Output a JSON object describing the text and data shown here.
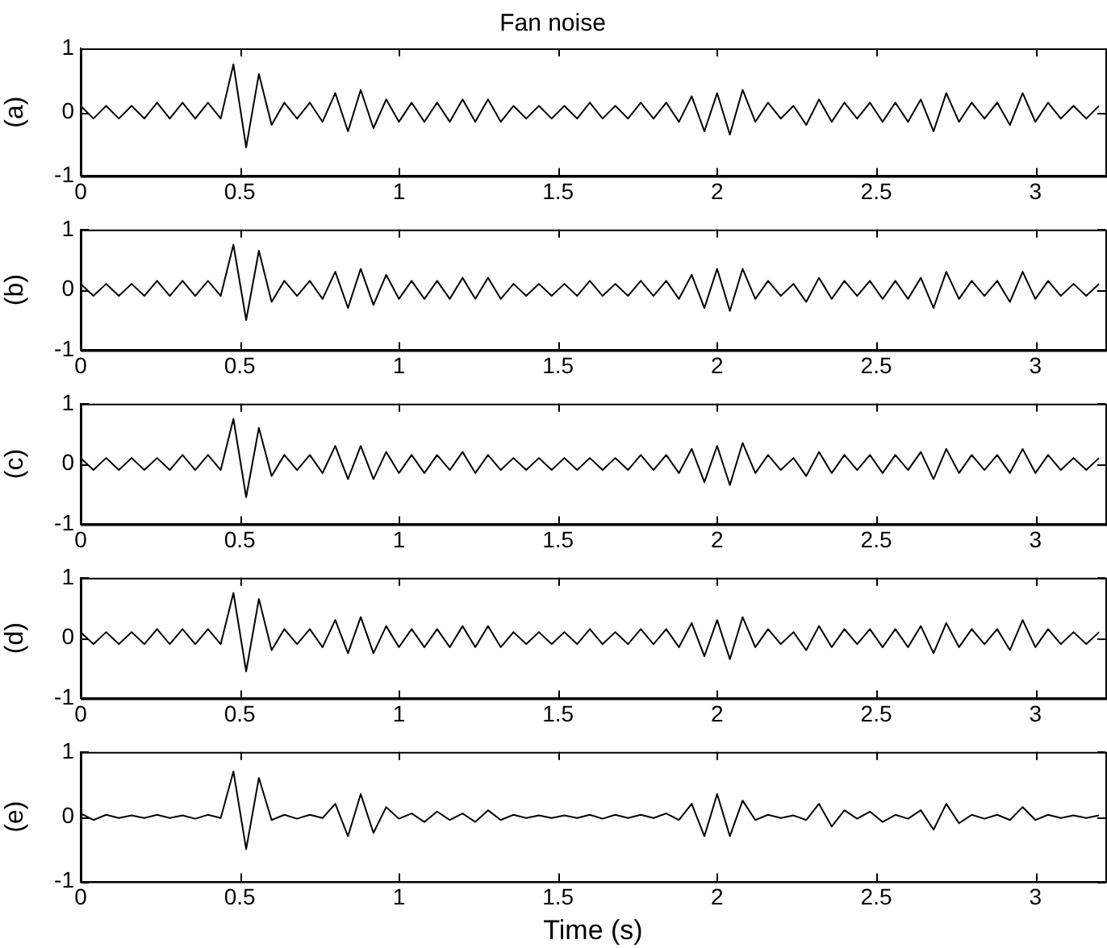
{
  "chart_data": [
    {
      "type": "line",
      "title": "Fan noise",
      "ylabel": "(a)",
      "color": "#000000",
      "xlim": [
        0,
        3.22
      ],
      "xticks": [
        0,
        0.5,
        1,
        1.5,
        2,
        2.5,
        3
      ],
      "ylim": [
        -1,
        1
      ],
      "yticks": [
        -1,
        0,
        1
      ],
      "grid": false,
      "legend": false,
      "marker": "none",
      "x": [
        0,
        0.04,
        0.08,
        0.12,
        0.16,
        0.2,
        0.24,
        0.28,
        0.32,
        0.36,
        0.4,
        0.44,
        0.48,
        0.52,
        0.56,
        0.6,
        0.64,
        0.68,
        0.72,
        0.76,
        0.8,
        0.84,
        0.88,
        0.92,
        0.96,
        1,
        1.04,
        1.08,
        1.12,
        1.16,
        1.2,
        1.24,
        1.28,
        1.32,
        1.36,
        1.4,
        1.44,
        1.48,
        1.52,
        1.56,
        1.6,
        1.64,
        1.68,
        1.72,
        1.76,
        1.8,
        1.84,
        1.88,
        1.92,
        1.96,
        2,
        2.04,
        2.08,
        2.12,
        2.16,
        2.2,
        2.24,
        2.28,
        2.32,
        2.36,
        2.4,
        2.44,
        2.48,
        2.52,
        2.56,
        2.6,
        2.64,
        2.68,
        2.72,
        2.76,
        2.8,
        2.84,
        2.88,
        2.92,
        2.96,
        3,
        3.04,
        3.08,
        3.12,
        3.16,
        3.2
      ],
      "values": [
        0.1,
        -0.1,
        0.1,
        -0.1,
        0.1,
        -0.1,
        0.15,
        -0.1,
        0.15,
        -0.1,
        0.15,
        -0.1,
        0.75,
        -0.55,
        0.6,
        -0.2,
        0.15,
        -0.1,
        0.15,
        -0.15,
        0.3,
        -0.3,
        0.35,
        -0.25,
        0.2,
        -0.15,
        0.15,
        -0.15,
        0.15,
        -0.15,
        0.2,
        -0.15,
        0.2,
        -0.15,
        0.1,
        -0.1,
        0.1,
        -0.1,
        0.1,
        -0.1,
        0.15,
        -0.1,
        0.1,
        -0.1,
        0.15,
        -0.1,
        0.15,
        -0.15,
        0.25,
        -0.3,
        0.3,
        -0.35,
        0.35,
        -0.15,
        0.15,
        -0.1,
        0.1,
        -0.2,
        0.2,
        -0.15,
        0.15,
        -0.1,
        0.15,
        -0.15,
        0.15,
        -0.15,
        0.2,
        -0.3,
        0.3,
        -0.15,
        0.15,
        -0.1,
        0.15,
        -0.2,
        0.3,
        -0.15,
        0.15,
        -0.1,
        0.1,
        -0.1,
        0.1
      ]
    },
    {
      "type": "line",
      "ylabel": "(b)",
      "color": "#000000",
      "xlim": [
        0,
        3.22
      ],
      "xticks": [
        0,
        0.5,
        1,
        1.5,
        2,
        2.5,
        3
      ],
      "ylim": [
        -1,
        1
      ],
      "yticks": [
        -1,
        0,
        1
      ],
      "grid": false,
      "legend": false,
      "marker": "none",
      "x": [
        0,
        0.04,
        0.08,
        0.12,
        0.16,
        0.2,
        0.24,
        0.28,
        0.32,
        0.36,
        0.4,
        0.44,
        0.48,
        0.52,
        0.56,
        0.6,
        0.64,
        0.68,
        0.72,
        0.76,
        0.8,
        0.84,
        0.88,
        0.92,
        0.96,
        1,
        1.04,
        1.08,
        1.12,
        1.16,
        1.2,
        1.24,
        1.28,
        1.32,
        1.36,
        1.4,
        1.44,
        1.48,
        1.52,
        1.56,
        1.6,
        1.64,
        1.68,
        1.72,
        1.76,
        1.8,
        1.84,
        1.88,
        1.92,
        1.96,
        2,
        2.04,
        2.08,
        2.12,
        2.16,
        2.2,
        2.24,
        2.28,
        2.32,
        2.36,
        2.4,
        2.44,
        2.48,
        2.52,
        2.56,
        2.6,
        2.64,
        2.68,
        2.72,
        2.76,
        2.8,
        2.84,
        2.88,
        2.92,
        2.96,
        3,
        3.04,
        3.08,
        3.12,
        3.16,
        3.2
      ],
      "values": [
        0.1,
        -0.1,
        0.1,
        -0.1,
        0.1,
        -0.1,
        0.15,
        -0.1,
        0.15,
        -0.1,
        0.15,
        -0.1,
        0.75,
        -0.5,
        0.65,
        -0.2,
        0.15,
        -0.1,
        0.15,
        -0.15,
        0.3,
        -0.3,
        0.35,
        -0.25,
        0.25,
        -0.15,
        0.15,
        -0.15,
        0.15,
        -0.15,
        0.2,
        -0.15,
        0.2,
        -0.15,
        0.1,
        -0.1,
        0.1,
        -0.1,
        0.1,
        -0.1,
        0.15,
        -0.1,
        0.1,
        -0.1,
        0.15,
        -0.1,
        0.15,
        -0.15,
        0.25,
        -0.3,
        0.35,
        -0.35,
        0.35,
        -0.15,
        0.15,
        -0.1,
        0.1,
        -0.2,
        0.2,
        -0.15,
        0.15,
        -0.1,
        0.15,
        -0.15,
        0.15,
        -0.15,
        0.2,
        -0.3,
        0.3,
        -0.15,
        0.15,
        -0.1,
        0.15,
        -0.2,
        0.3,
        -0.15,
        0.15,
        -0.1,
        0.1,
        -0.1,
        0.1
      ]
    },
    {
      "type": "line",
      "ylabel": "(c)",
      "color": "#000000",
      "xlim": [
        0,
        3.22
      ],
      "xticks": [
        0,
        0.5,
        1,
        1.5,
        2,
        2.5,
        3
      ],
      "ylim": [
        -1,
        1
      ],
      "yticks": [
        -1,
        0,
        1
      ],
      "grid": false,
      "legend": false,
      "marker": "none",
      "x": [
        0,
        0.04,
        0.08,
        0.12,
        0.16,
        0.2,
        0.24,
        0.28,
        0.32,
        0.36,
        0.4,
        0.44,
        0.48,
        0.52,
        0.56,
        0.6,
        0.64,
        0.68,
        0.72,
        0.76,
        0.8,
        0.84,
        0.88,
        0.92,
        0.96,
        1,
        1.04,
        1.08,
        1.12,
        1.16,
        1.2,
        1.24,
        1.28,
        1.32,
        1.36,
        1.4,
        1.44,
        1.48,
        1.52,
        1.56,
        1.6,
        1.64,
        1.68,
        1.72,
        1.76,
        1.8,
        1.84,
        1.88,
        1.92,
        1.96,
        2,
        2.04,
        2.08,
        2.12,
        2.16,
        2.2,
        2.24,
        2.28,
        2.32,
        2.36,
        2.4,
        2.44,
        2.48,
        2.52,
        2.56,
        2.6,
        2.64,
        2.68,
        2.72,
        2.76,
        2.8,
        2.84,
        2.88,
        2.92,
        2.96,
        3,
        3.04,
        3.08,
        3.12,
        3.16,
        3.2
      ],
      "values": [
        0.1,
        -0.1,
        0.1,
        -0.1,
        0.1,
        -0.1,
        0.1,
        -0.1,
        0.15,
        -0.1,
        0.15,
        -0.1,
        0.75,
        -0.55,
        0.6,
        -0.2,
        0.15,
        -0.1,
        0.15,
        -0.15,
        0.3,
        -0.25,
        0.3,
        -0.25,
        0.2,
        -0.15,
        0.15,
        -0.15,
        0.15,
        -0.1,
        0.2,
        -0.15,
        0.15,
        -0.1,
        0.1,
        -0.1,
        0.1,
        -0.1,
        0.1,
        -0.1,
        0.1,
        -0.1,
        0.1,
        -0.1,
        0.15,
        -0.1,
        0.15,
        -0.15,
        0.25,
        -0.3,
        0.3,
        -0.35,
        0.35,
        -0.15,
        0.15,
        -0.1,
        0.1,
        -0.2,
        0.2,
        -0.15,
        0.15,
        -0.1,
        0.15,
        -0.15,
        0.15,
        -0.1,
        0.2,
        -0.25,
        0.25,
        -0.15,
        0.15,
        -0.1,
        0.15,
        -0.15,
        0.25,
        -0.15,
        0.15,
        -0.1,
        0.1,
        -0.1,
        0.1
      ]
    },
    {
      "type": "line",
      "ylabel": "(d)",
      "color": "#000000",
      "xlim": [
        0,
        3.22
      ],
      "xticks": [
        0,
        0.5,
        1,
        1.5,
        2,
        2.5,
        3
      ],
      "ylim": [
        -1,
        1
      ],
      "yticks": [
        -1,
        0,
        1
      ],
      "grid": false,
      "legend": false,
      "marker": "none",
      "x": [
        0,
        0.04,
        0.08,
        0.12,
        0.16,
        0.2,
        0.24,
        0.28,
        0.32,
        0.36,
        0.4,
        0.44,
        0.48,
        0.52,
        0.56,
        0.6,
        0.64,
        0.68,
        0.72,
        0.76,
        0.8,
        0.84,
        0.88,
        0.92,
        0.96,
        1,
        1.04,
        1.08,
        1.12,
        1.16,
        1.2,
        1.24,
        1.28,
        1.32,
        1.36,
        1.4,
        1.44,
        1.48,
        1.52,
        1.56,
        1.6,
        1.64,
        1.68,
        1.72,
        1.76,
        1.8,
        1.84,
        1.88,
        1.92,
        1.96,
        2,
        2.04,
        2.08,
        2.12,
        2.16,
        2.2,
        2.24,
        2.28,
        2.32,
        2.36,
        2.4,
        2.44,
        2.48,
        2.52,
        2.56,
        2.6,
        2.64,
        2.68,
        2.72,
        2.76,
        2.8,
        2.84,
        2.88,
        2.92,
        2.96,
        3,
        3.04,
        3.08,
        3.12,
        3.16,
        3.2
      ],
      "values": [
        0.1,
        -0.1,
        0.1,
        -0.1,
        0.1,
        -0.1,
        0.15,
        -0.1,
        0.15,
        -0.1,
        0.15,
        -0.1,
        0.75,
        -0.55,
        0.65,
        -0.2,
        0.15,
        -0.1,
        0.15,
        -0.15,
        0.3,
        -0.25,
        0.35,
        -0.25,
        0.2,
        -0.15,
        0.15,
        -0.15,
        0.15,
        -0.15,
        0.2,
        -0.15,
        0.2,
        -0.15,
        0.1,
        -0.1,
        0.1,
        -0.1,
        0.1,
        -0.1,
        0.15,
        -0.1,
        0.1,
        -0.1,
        0.15,
        -0.1,
        0.15,
        -0.15,
        0.25,
        -0.3,
        0.3,
        -0.35,
        0.35,
        -0.15,
        0.15,
        -0.1,
        0.1,
        -0.2,
        0.2,
        -0.15,
        0.15,
        -0.1,
        0.15,
        -0.15,
        0.15,
        -0.15,
        0.2,
        -0.25,
        0.25,
        -0.15,
        0.15,
        -0.1,
        0.15,
        -0.2,
        0.3,
        -0.15,
        0.15,
        -0.1,
        0.1,
        -0.1,
        0.1
      ]
    },
    {
      "type": "line",
      "ylabel": "(e)",
      "xlabel": "Time (s)",
      "color": "#000000",
      "xlim": [
        0,
        3.22
      ],
      "xticks": [
        0,
        0.5,
        1,
        1.5,
        2,
        2.5,
        3
      ],
      "ylim": [
        -1,
        1
      ],
      "yticks": [
        -1,
        0,
        1
      ],
      "grid": false,
      "legend": false,
      "marker": "none",
      "x": [
        0,
        0.04,
        0.08,
        0.12,
        0.16,
        0.2,
        0.24,
        0.28,
        0.32,
        0.36,
        0.4,
        0.44,
        0.48,
        0.52,
        0.56,
        0.6,
        0.64,
        0.68,
        0.72,
        0.76,
        0.8,
        0.84,
        0.88,
        0.92,
        0.96,
        1,
        1.04,
        1.08,
        1.12,
        1.16,
        1.2,
        1.24,
        1.28,
        1.32,
        1.36,
        1.4,
        1.44,
        1.48,
        1.52,
        1.56,
        1.6,
        1.64,
        1.68,
        1.72,
        1.76,
        1.8,
        1.84,
        1.88,
        1.92,
        1.96,
        2,
        2.04,
        2.08,
        2.12,
        2.16,
        2.2,
        2.24,
        2.28,
        2.32,
        2.36,
        2.4,
        2.44,
        2.48,
        2.52,
        2.56,
        2.6,
        2.64,
        2.68,
        2.72,
        2.76,
        2.8,
        2.84,
        2.88,
        2.92,
        2.96,
        3,
        3.04,
        3.08,
        3.12,
        3.16,
        3.2
      ],
      "values": [
        0.05,
        -0.05,
        0.03,
        -0.02,
        0.02,
        -0.02,
        0.03,
        -0.02,
        0.02,
        -0.03,
        0.03,
        -0.02,
        0.7,
        -0.5,
        0.6,
        -0.05,
        0.03,
        -0.03,
        0.03,
        -0.02,
        0.2,
        -0.3,
        0.35,
        -0.25,
        0.15,
        -0.03,
        0.05,
        -0.08,
        0.08,
        -0.05,
        0.05,
        -0.08,
        0.1,
        -0.05,
        0.03,
        -0.02,
        0.02,
        -0.02,
        0.02,
        -0.02,
        0.03,
        -0.03,
        0.03,
        -0.02,
        0.03,
        -0.02,
        0.05,
        -0.05,
        0.2,
        -0.3,
        0.35,
        -0.3,
        0.25,
        -0.05,
        0.03,
        -0.02,
        0.02,
        -0.05,
        0.2,
        -0.15,
        0.1,
        -0.03,
        0.08,
        -0.08,
        0.03,
        -0.03,
        0.1,
        -0.2,
        0.2,
        -0.1,
        0.03,
        -0.03,
        0.03,
        -0.05,
        0.15,
        -0.05,
        0.03,
        -0.02,
        0.02,
        -0.02,
        0.02
      ]
    }
  ]
}
